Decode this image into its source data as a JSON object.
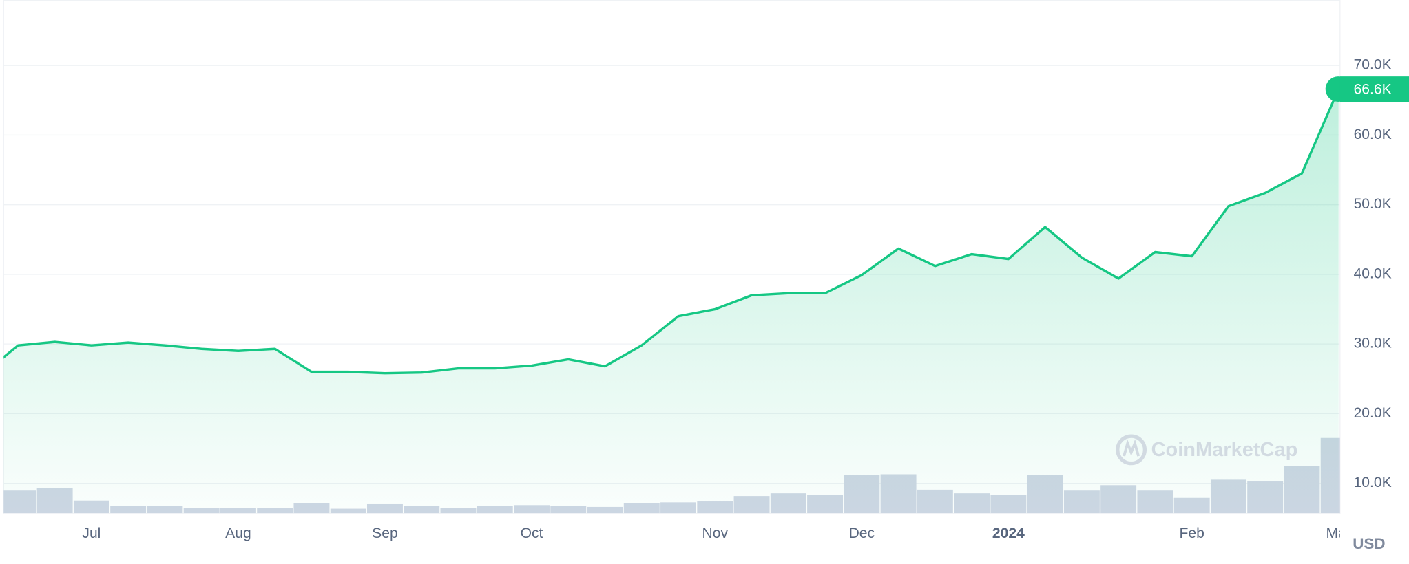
{
  "chart_data": {
    "type": "line",
    "categories": [
      null,
      null,
      null,
      "Jul",
      null,
      null,
      null,
      "Aug",
      null,
      null,
      null,
      "Sep",
      null,
      null,
      null,
      "Oct",
      null,
      null,
      null,
      null,
      "Nov",
      null,
      null,
      null,
      "Dec",
      null,
      null,
      null,
      "2024",
      null,
      null,
      null,
      null,
      "Feb",
      null,
      null,
      null,
      "Mar"
    ],
    "series": [
      {
        "color": "#16c784",
        "values": [
          25500,
          29800,
          30300,
          29800,
          30200,
          29800,
          29300,
          29000,
          29300,
          26000,
          26000,
          25800,
          25900,
          26500,
          26500,
          26900,
          27800,
          26800,
          29800,
          34000,
          35000,
          37000,
          37300,
          37300,
          39900,
          43700,
          41200,
          42900,
          42200,
          46800,
          42400,
          39400,
          43200,
          42600,
          49800,
          51700,
          54500,
          66600
        ],
        "value_labels": [
          null,
          null,
          null,
          null,
          null,
          null,
          null,
          null,
          null,
          null,
          null,
          null,
          null,
          null,
          null,
          null,
          null,
          null,
          null,
          null,
          null,
          null,
          null,
          null,
          null,
          null,
          null,
          null,
          null,
          null,
          null,
          null,
          null,
          null,
          null,
          null,
          null,
          "66.6K"
        ]
      },
      {
        "color": "#cfd6e4",
        "axis": "y2",
        "values": [
          null,
          25,
          28,
          14,
          8,
          8,
          6,
          6,
          6,
          11,
          5,
          10,
          8,
          6,
          8,
          9,
          8,
          7,
          11,
          12,
          13,
          19,
          22,
          20,
          42,
          43,
          26,
          22,
          20,
          42,
          25,
          31,
          25,
          17,
          37,
          35,
          52,
          83
        ]
      }
    ],
    "ylim": [
      5700,
      79400
    ],
    "yticks": [
      {
        "value": 10000,
        "label": "10.0K"
      },
      {
        "value": 20000,
        "label": "20.0K"
      },
      {
        "value": 30000,
        "label": "30.0K"
      },
      {
        "value": 40000,
        "label": "40.0K"
      },
      {
        "value": 50000,
        "label": "50.0K"
      },
      {
        "value": 60000,
        "label": "60.0K"
      },
      {
        "value": 70000,
        "label": "70.0K"
      }
    ],
    "y2lim": [
      0,
      100
    ],
    "grid": true,
    "currency": "USD",
    "watermark": "CoinMarketCap"
  }
}
